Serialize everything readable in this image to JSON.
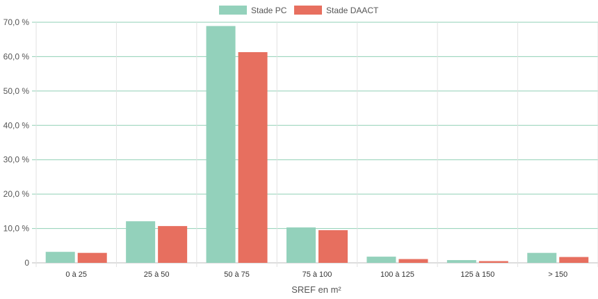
{
  "chart_data": {
    "type": "bar",
    "categories": [
      "0 à 25",
      "25 à 50",
      "50 à 75",
      "75 à 100",
      "100 à 125",
      "125 à 150",
      "> 150"
    ],
    "series": [
      {
        "name": "Stade PC",
        "values": [
          3.2,
          12.1,
          68.9,
          10.3,
          1.8,
          0.8,
          2.9
        ],
        "color": "#93d1bb"
      },
      {
        "name": "Stade DAACT",
        "values": [
          2.9,
          10.7,
          61.3,
          9.5,
          1.1,
          0.5,
          1.7
        ],
        "color": "#e76f5f"
      }
    ],
    "xlabel": "SREF en m²",
    "ylabel": "",
    "ylim": [
      0,
      70
    ],
    "yticks": [
      "0",
      "10,0 %",
      "20,0 %",
      "30,0 %",
      "40,0 %",
      "50,0 %",
      "60,0 %",
      "70,0 %"
    ],
    "grid": true,
    "legend_position": "top-center",
    "gridline_color": "#8fcfb4"
  }
}
